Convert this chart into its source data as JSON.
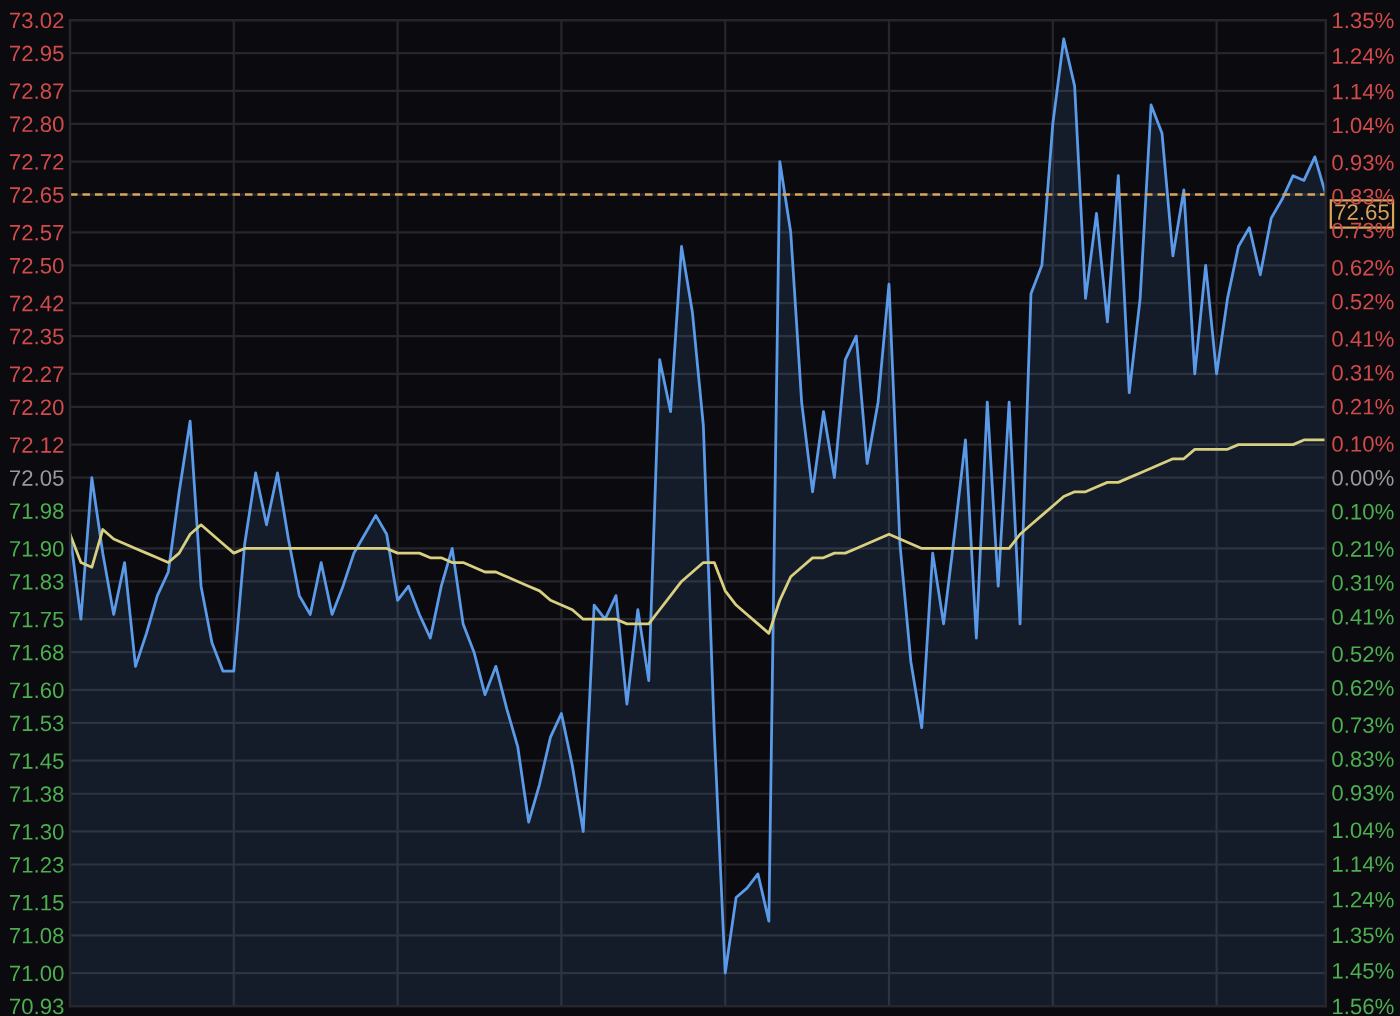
{
  "chart_data": {
    "type": "area",
    "categories": [
      null,
      null,
      null,
      null,
      null,
      null,
      null,
      null,
      null,
      null,
      null,
      null,
      null,
      null,
      null,
      null,
      null,
      null,
      null,
      null,
      null,
      null,
      null,
      null,
      null,
      null,
      null,
      null,
      null,
      null,
      null,
      null,
      null,
      null,
      null,
      null,
      null,
      null,
      null,
      null,
      null,
      null,
      null,
      null,
      null,
      null,
      null,
      null,
      null,
      null,
      null,
      null,
      null,
      null,
      null,
      null,
      null,
      null,
      null,
      null,
      null,
      null,
      null,
      null,
      null,
      null,
      null,
      null,
      null,
      null,
      null,
      null,
      null,
      null,
      null,
      null,
      null,
      null,
      null,
      null,
      null,
      null,
      null,
      null,
      null,
      null,
      null,
      null,
      null,
      null,
      null,
      null,
      null,
      null,
      null,
      null,
      null,
      null,
      null,
      null,
      null,
      null,
      null,
      null,
      null,
      null,
      null,
      null,
      null,
      null,
      null,
      null,
      null,
      null,
      null,
      null
    ],
    "ylim": [
      70.93,
      73.02
    ],
    "yticks": [
      73.02,
      72.95,
      72.87,
      {
        "value": 72.8,
        "label": "72.80"
      },
      72.72,
      72.65,
      72.57,
      {
        "value": 72.5,
        "label": "72.50"
      },
      72.42,
      72.35,
      72.27,
      {
        "value": 72.2,
        "label": "72.20"
      },
      72.12,
      72.05,
      71.98,
      {
        "value": 71.9,
        "label": "71.90"
      },
      71.83,
      71.75,
      71.68,
      {
        "value": 71.6,
        "label": "71.60"
      },
      71.53,
      71.45,
      71.38,
      {
        "value": 71.3,
        "label": "71.30"
      },
      71.23,
      71.15,
      71.08,
      {
        "value": 71.0,
        "label": "71.00"
      },
      70.93
    ],
    "y2lim": [
      -1.56,
      1.35
    ],
    "y2ticks": [
      {
        "value": 1.35,
        "label": "1.35%"
      },
      {
        "value": 1.245,
        "label": "1.24%"
      },
      {
        "value": 1.14,
        "label": "1.14%"
      },
      {
        "value": 1.04,
        "label": "1.04%"
      },
      {
        "value": 0.93,
        "label": "0.93%"
      },
      {
        "value": 0.83,
        "label": "0.83%"
      },
      {
        "value": 0.73,
        "label": "0.73%"
      },
      {
        "value": 0.62,
        "label": "0.62%"
      },
      {
        "value": 0.52,
        "label": "0.52%"
      },
      {
        "value": 0.41,
        "label": "0.41%"
      },
      {
        "value": 0.31,
        "label": "0.31%"
      },
      {
        "value": 0.21,
        "label": "0.21%"
      },
      {
        "value": 0.1,
        "label": "0.10%"
      },
      {
        "value": 0,
        "label": "0.00%"
      },
      {
        "value": -0.1,
        "label": "0.10%"
      },
      {
        "value": -0.21,
        "label": "0.21%"
      },
      {
        "value": -0.31,
        "label": "0.31%"
      },
      {
        "value": -0.41,
        "label": "0.41%"
      },
      {
        "value": -0.52,
        "label": "0.52%"
      },
      {
        "value": -0.62,
        "label": "0.62%"
      },
      {
        "value": -0.73,
        "label": "0.73%"
      },
      {
        "value": -0.83,
        "label": "0.83%"
      },
      {
        "value": -0.93,
        "label": "0.93%"
      },
      {
        "value": -1.04,
        "label": "1.04%"
      },
      {
        "value": -1.14,
        "label": "1.14%"
      },
      {
        "value": -1.245,
        "label": "1.24%"
      },
      {
        "value": -1.35,
        "label": "1.35%"
      },
      {
        "value": -1.455,
        "label": "1.45%"
      },
      {
        "value": -1.56,
        "label": "1.56%"
      }
    ],
    "grid": true,
    "ref_lines": [
      {
        "axis": "y",
        "value": 72.65,
        "label": "72.65",
        "color": "#d9a55a",
        "line_style": "dashed"
      }
    ],
    "series": [
      {
        "color": "#5b9ae8",
        "values": [
          71.93,
          71.75,
          72.05,
          71.89,
          71.76,
          71.87,
          71.65,
          71.72,
          71.8,
          71.85,
          72.02,
          72.17,
          71.82,
          71.7,
          71.64,
          71.64,
          71.91,
          72.06,
          71.95,
          72.06,
          71.92,
          71.8,
          71.76,
          71.87,
          71.76,
          71.82,
          71.89,
          71.93,
          71.97,
          71.93,
          71.79,
          71.82,
          71.76,
          71.71,
          71.82,
          71.9,
          71.74,
          71.68,
          71.59,
          71.65,
          71.56,
          71.48,
          71.32,
          71.4,
          71.5,
          71.55,
          71.44,
          71.3,
          71.78,
          71.75,
          71.8,
          71.57,
          71.77,
          71.62,
          72.3,
          72.19,
          72.54,
          72.4,
          72.16,
          71.51,
          71.0,
          71.16,
          71.18,
          71.21,
          71.11,
          72.72,
          72.57,
          72.21,
          72.02,
          72.19,
          72.05,
          72.3,
          72.35,
          72.08,
          72.21,
          72.46,
          71.91,
          71.66,
          71.52,
          71.89,
          71.74,
          71.93,
          72.13,
          71.71,
          72.21,
          71.82,
          72.21,
          71.74,
          72.44,
          72.5,
          72.8,
          72.98,
          72.88,
          72.43,
          72.61,
          72.38,
          72.69,
          72.23,
          72.43,
          72.84,
          72.78,
          72.52,
          72.66,
          72.27,
          72.5,
          72.27,
          72.43,
          72.54,
          72.58,
          72.48,
          72.6,
          72.64,
          72.69,
          72.68,
          72.73,
          72.65
        ]
      },
      {
        "type": "line",
        "color": "#d8d080",
        "values": [
          71.93,
          71.87,
          71.86,
          71.94,
          71.92,
          71.91,
          71.9,
          71.89,
          71.88,
          71.87,
          71.89,
          71.93,
          71.95,
          71.93,
          71.91,
          71.89,
          71.9,
          71.9,
          71.9,
          71.9,
          71.9,
          71.9,
          71.9,
          71.9,
          71.9,
          71.9,
          71.9,
          71.9,
          71.9,
          71.9,
          71.89,
          71.89,
          71.89,
          71.88,
          71.88,
          71.87,
          71.87,
          71.86,
          71.85,
          71.85,
          71.84,
          71.83,
          71.82,
          71.81,
          71.79,
          71.78,
          71.77,
          71.75,
          71.75,
          71.75,
          71.75,
          71.74,
          71.74,
          71.74,
          71.77,
          71.8,
          71.83,
          71.85,
          71.87,
          71.87,
          71.81,
          71.78,
          71.76,
          71.74,
          71.72,
          71.79,
          71.84,
          71.86,
          71.88,
          71.88,
          71.89,
          71.89,
          71.9,
          71.91,
          71.92,
          71.93,
          71.92,
          71.91,
          71.9,
          71.9,
          71.9,
          71.9,
          71.9,
          71.9,
          71.9,
          71.9,
          71.9,
          71.93,
          71.95,
          71.97,
          71.99,
          72.01,
          72.02,
          72.02,
          72.03,
          72.04,
          72.04,
          72.05,
          72.06,
          72.07,
          72.08,
          72.09,
          72.09,
          72.11,
          72.11,
          72.11,
          72.11,
          72.12,
          72.12,
          72.12,
          72.12,
          72.12,
          72.12,
          72.13,
          72.13,
          72.13
        ]
      }
    ]
  }
}
